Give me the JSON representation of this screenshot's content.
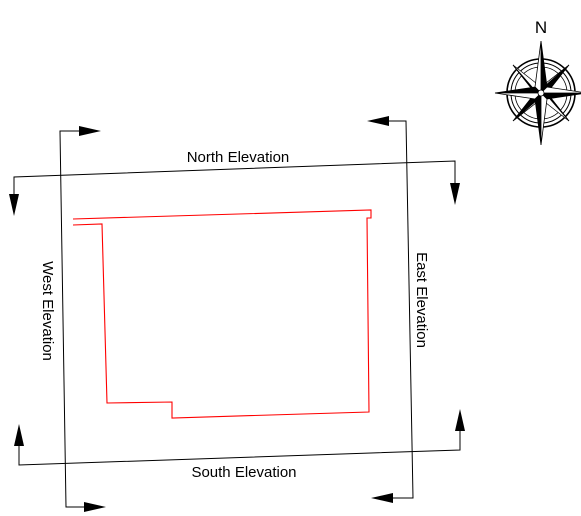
{
  "compass": {
    "north_label": "N",
    "icon": "compass-rose-icon"
  },
  "sections": {
    "north": "North Elevation",
    "south": "South Elevation",
    "east": "East Elevation",
    "west": "West Elevation"
  },
  "colors": {
    "building_outline": "#ff0000",
    "section_lines": "#000000",
    "background": "#ffffff"
  }
}
